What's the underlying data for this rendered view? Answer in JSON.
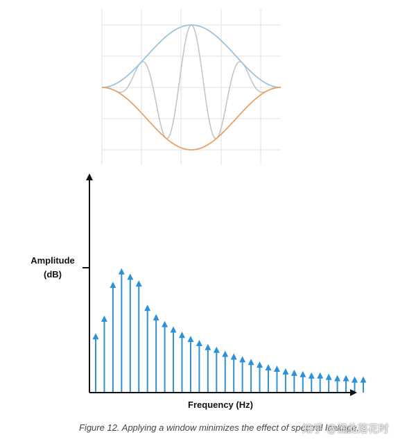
{
  "colors": {
    "window_upper": "#9cc3dd",
    "window_lower": "#e8a268",
    "signal": "#c4c4c4",
    "grid": "#e2e2e2",
    "spectrum": "#2e90d6",
    "axis": "#111111"
  },
  "window_plot": {
    "grid": true,
    "envelope": "hann-like bell",
    "signal_cycles": 3.5
  },
  "chart_data": {
    "type": "bar",
    "xlabel": "Frequency (Hz)",
    "ylabel_line1": "Amplitude",
    "ylabel_line2": "(dB)",
    "marker": "arrow",
    "values": [
      0.44,
      0.57,
      0.82,
      0.92,
      0.88,
      0.83,
      0.65,
      0.58,
      0.53,
      0.49,
      0.45,
      0.42,
      0.39,
      0.36,
      0.34,
      0.31,
      0.29,
      0.27,
      0.25,
      0.23,
      0.21,
      0.2,
      0.18,
      0.17,
      0.16,
      0.15,
      0.15,
      0.14,
      0.13,
      0.13,
      0.12,
      0.12
    ]
  },
  "caption": "Figure 12. Applying a window minimizes the effect of spectral leakage.",
  "watermark": "知乎 @谎此落花时"
}
